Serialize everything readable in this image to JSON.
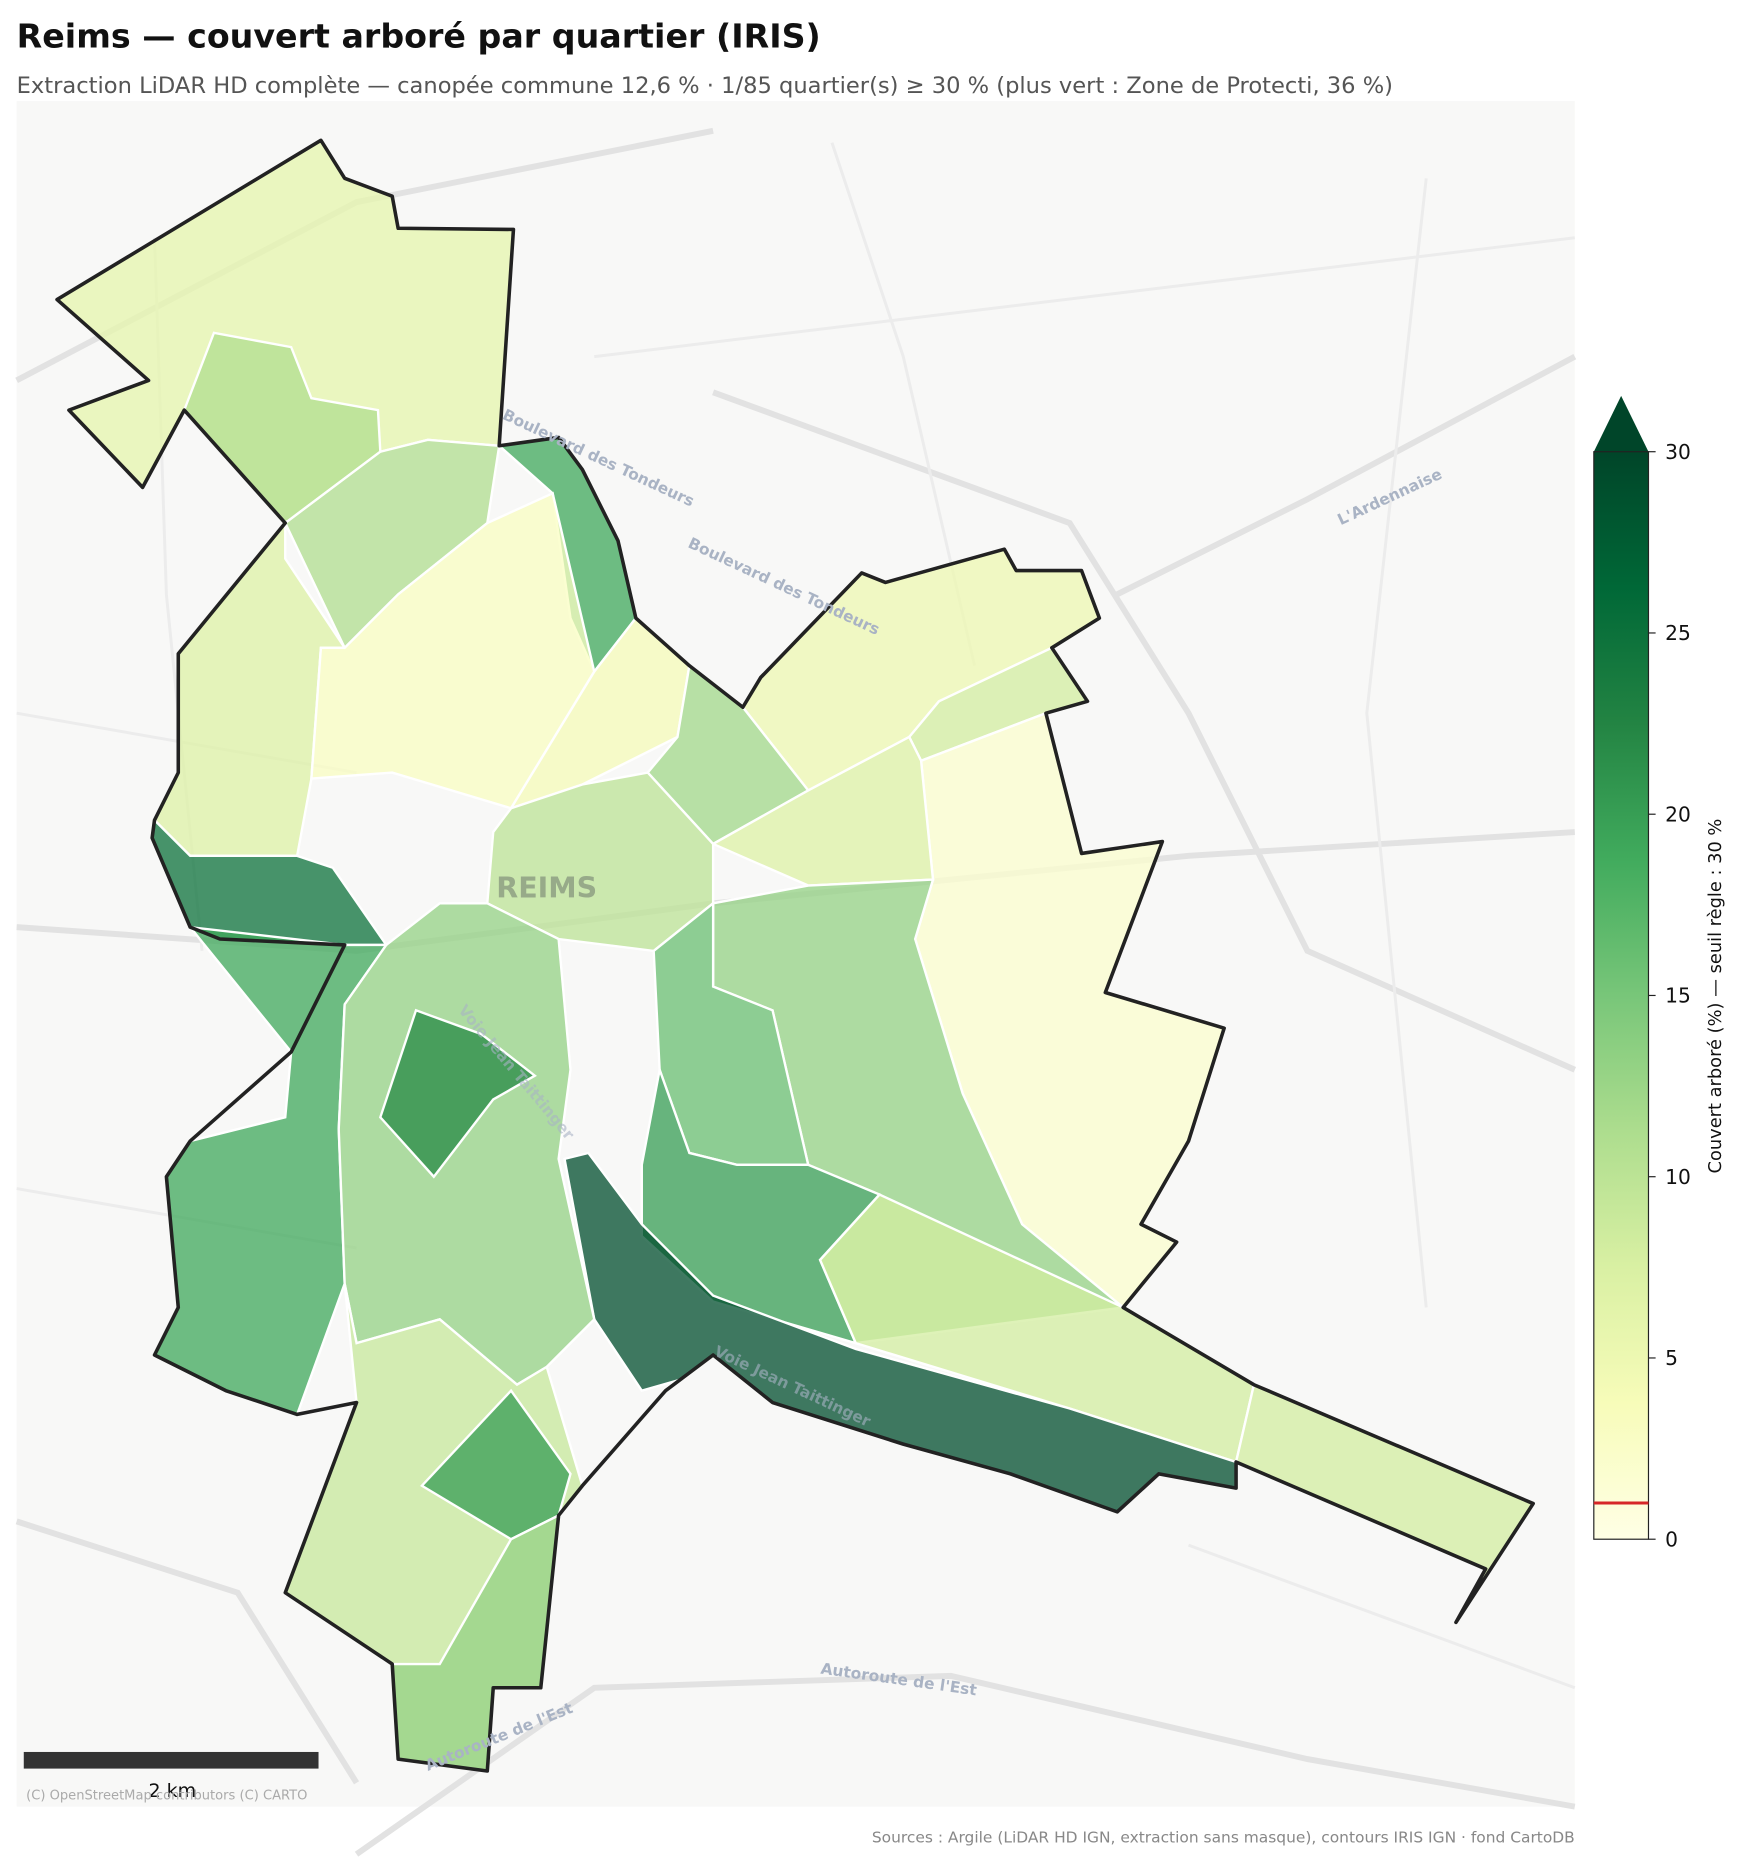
{
  "header": {
    "title": "Reims — couvert arboré par quartier (IRIS)",
    "subtitle": "Extraction LiDAR HD complète — canopée commune 12,6 % · 1/85 quartier(s) ≥ 30 % (plus vert : Zone de Protecti, 36 %)"
  },
  "districts": {
    "values": [
      6,
      11,
      7,
      25,
      11,
      19,
      3,
      4,
      5,
      8,
      2,
      12,
      7,
      10,
      13,
      16,
      20,
      8,
      8,
      29,
      19,
      13,
      22,
      9,
      20,
      13
    ],
    "opacity": 0.75
  },
  "colorbar": {
    "label": "Couvert arboré (%) — seuil règle : 30 %",
    "lim": [
      0,
      30
    ],
    "ticks": [
      0,
      5,
      10,
      15,
      20,
      25,
      30
    ],
    "marker_value": 1,
    "marker_color": "#d62728",
    "colors": [
      "#ffffe5",
      "#f7fcb9",
      "#d9f0a3",
      "#addd8e",
      "#78c679",
      "#41ab5d",
      "#238443",
      "#006837",
      "#004529"
    ]
  },
  "map_labels": {
    "city": "REIMS",
    "boulevard_1": "Boulevard des Tondeurs",
    "boulevard_2": "Boulevard des Tondeurs",
    "ardennaise": "L'Ardennaise",
    "autoroute_1": "Autoroute de l'Est",
    "autoroute_2": "Autoroute de l'Est",
    "voie_1": "Voie Jean Taittinger",
    "voie_2": "Voie Jean Taittinger"
  },
  "scale_bar": {
    "label": "2 km"
  },
  "attribution": "(C) OpenStreetMap contributors (C) CARTO",
  "sources": "Sources : Argile (LiDAR HD IGN, extraction sans masque), contours IRIS IGN · fond CartoDB"
}
